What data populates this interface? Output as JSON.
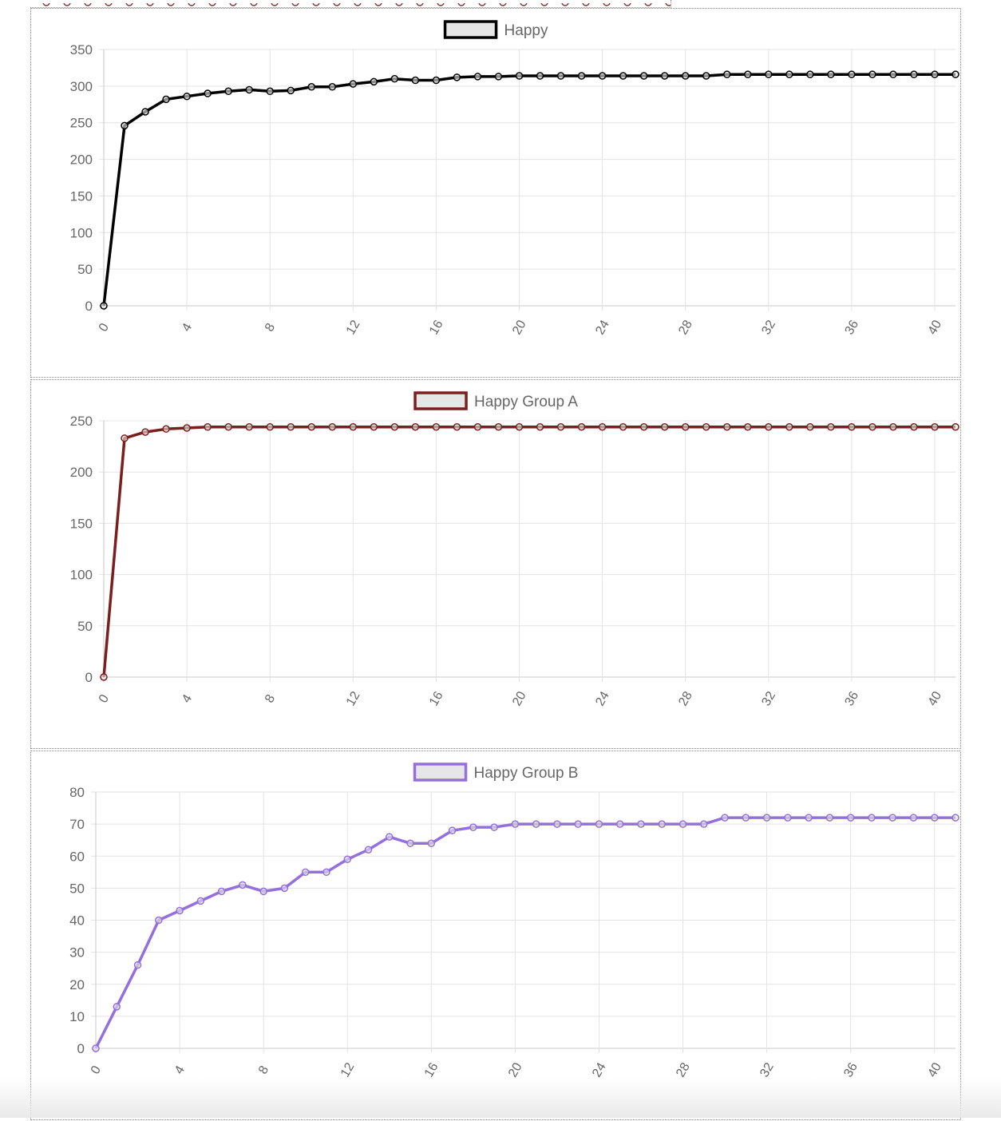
{
  "chart_data": [
    {
      "type": "line",
      "legend": "Happy",
      "legend_position": "top",
      "color": "#000000",
      "grid": true,
      "x_ticks": [
        0,
        4,
        8,
        12,
        16,
        20,
        24,
        28,
        32,
        36,
        40
      ],
      "y_ticks": [
        0,
        50,
        100,
        150,
        200,
        250,
        300,
        350
      ],
      "xlim": [
        0,
        41
      ],
      "ylim": [
        0,
        350
      ],
      "x": [
        0,
        1,
        2,
        3,
        4,
        5,
        6,
        7,
        8,
        9,
        10,
        11,
        12,
        13,
        14,
        15,
        16,
        17,
        18,
        19,
        20,
        21,
        22,
        23,
        24,
        25,
        26,
        27,
        28,
        29,
        30,
        31,
        32,
        33,
        34,
        35,
        36,
        37,
        38,
        39,
        40,
        41
      ],
      "values": [
        0,
        246,
        265,
        282,
        286,
        290,
        293,
        295,
        293,
        294,
        299,
        299,
        303,
        306,
        310,
        308,
        308,
        312,
        313,
        313,
        314,
        314,
        314,
        314,
        314,
        314,
        314,
        314,
        314,
        314,
        316,
        316,
        316,
        316,
        316,
        316,
        316,
        316,
        316,
        316,
        316,
        316
      ]
    },
    {
      "type": "line",
      "legend": "Happy Group A",
      "legend_position": "top",
      "color": "#7b1e1e",
      "grid": true,
      "x_ticks": [
        0,
        4,
        8,
        12,
        16,
        20,
        24,
        28,
        32,
        36,
        40
      ],
      "y_ticks": [
        0,
        50,
        100,
        150,
        200,
        250
      ],
      "xlim": [
        0,
        41
      ],
      "ylim": [
        0,
        250
      ],
      "x": [
        0,
        1,
        2,
        3,
        4,
        5,
        6,
        7,
        8,
        9,
        10,
        11,
        12,
        13,
        14,
        15,
        16,
        17,
        18,
        19,
        20,
        21,
        22,
        23,
        24,
        25,
        26,
        27,
        28,
        29,
        30,
        31,
        32,
        33,
        34,
        35,
        36,
        37,
        38,
        39,
        40,
        41
      ],
      "values": [
        0,
        233,
        239,
        242,
        243,
        244,
        244,
        244,
        244,
        244,
        244,
        244,
        244,
        244,
        244,
        244,
        244,
        244,
        244,
        244,
        244,
        244,
        244,
        244,
        244,
        244,
        244,
        244,
        244,
        244,
        244,
        244,
        244,
        244,
        244,
        244,
        244,
        244,
        244,
        244,
        244,
        244
      ]
    },
    {
      "type": "line",
      "legend": "Happy Group B",
      "legend_position": "top",
      "color": "#9370db",
      "grid": true,
      "x_ticks": [
        0,
        4,
        8,
        12,
        16,
        20,
        24,
        28,
        32,
        36,
        40
      ],
      "y_ticks": [
        0,
        10,
        20,
        30,
        40,
        50,
        60,
        70,
        80
      ],
      "xlim": [
        0,
        41
      ],
      "ylim": [
        0,
        80
      ],
      "x": [
        0,
        1,
        2,
        3,
        4,
        5,
        6,
        7,
        8,
        9,
        10,
        11,
        12,
        13,
        14,
        15,
        16,
        17,
        18,
        19,
        20,
        21,
        22,
        23,
        24,
        25,
        26,
        27,
        28,
        29,
        30,
        31,
        32,
        33,
        34,
        35,
        36,
        37,
        38,
        39,
        40,
        41
      ],
      "values": [
        0,
        13,
        26,
        40,
        43,
        46,
        49,
        51,
        49,
        50,
        55,
        55,
        59,
        62,
        66,
        64,
        64,
        68,
        69,
        69,
        70,
        70,
        70,
        70,
        70,
        70,
        70,
        70,
        70,
        70,
        72,
        72,
        72,
        72,
        72,
        72,
        72,
        72,
        72,
        72,
        72,
        72
      ]
    }
  ]
}
